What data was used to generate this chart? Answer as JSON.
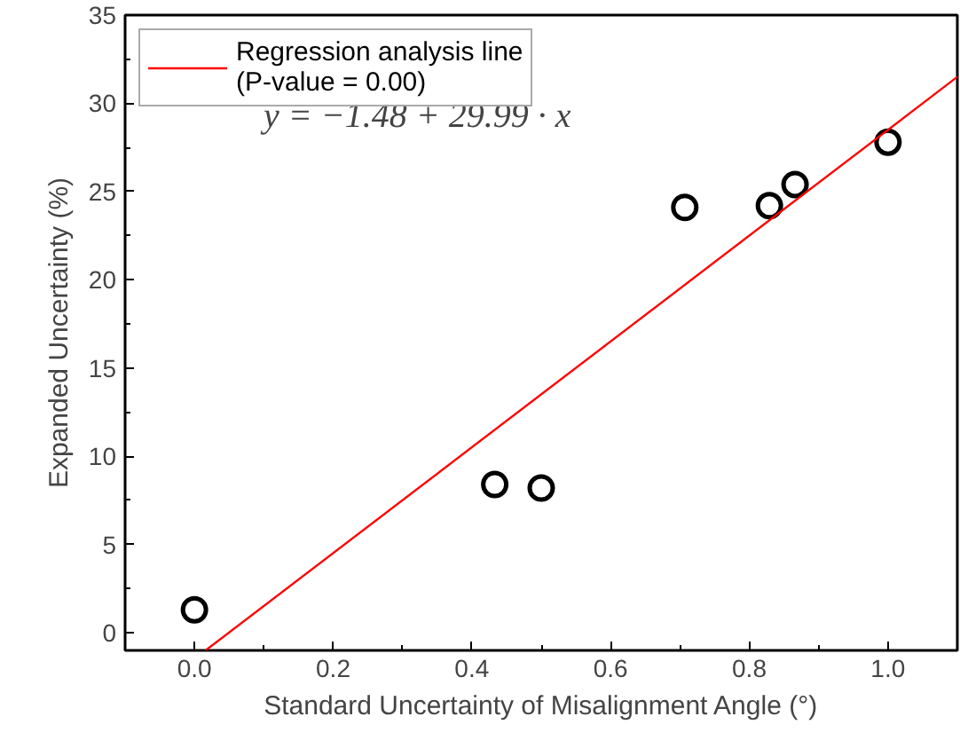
{
  "chart_data": {
    "type": "scatter",
    "xlabel": "Standard Uncertainty of Misalignment Angle (°)",
    "ylabel": "Expanded Uncertainty (%)",
    "xlim": [
      -0.1,
      1.1
    ],
    "xticks": [
      {
        "value": 0,
        "label": "0.0"
      },
      0.2,
      0.4,
      0.6,
      0.8,
      {
        "value": 1,
        "label": "1.0"
      }
    ],
    "ylim": [
      -1,
      35
    ],
    "yticks": [
      0,
      5,
      10,
      15,
      20,
      25,
      30,
      35
    ],
    "x": [
      0,
      0.433,
      0.5,
      0.707,
      0.829,
      0.866,
      1.0
    ],
    "series": [
      {
        "color": "#000000",
        "marker": "circle",
        "values": [
          1.3,
          8.4,
          8.2,
          24.1,
          24.2,
          25.4,
          27.8
        ]
      },
      {
        "type": "line",
        "name": "Regression analysis line\n(P-value = 0.00)",
        "color": "#ff0000",
        "x": [
          0.016,
          1.1
        ],
        "values": [
          -1,
          31.5
        ]
      }
    ],
    "annotations": [
      "y = −1.48 + 29.99 · x"
    ],
    "legend": "top left",
    "grid": false
  }
}
